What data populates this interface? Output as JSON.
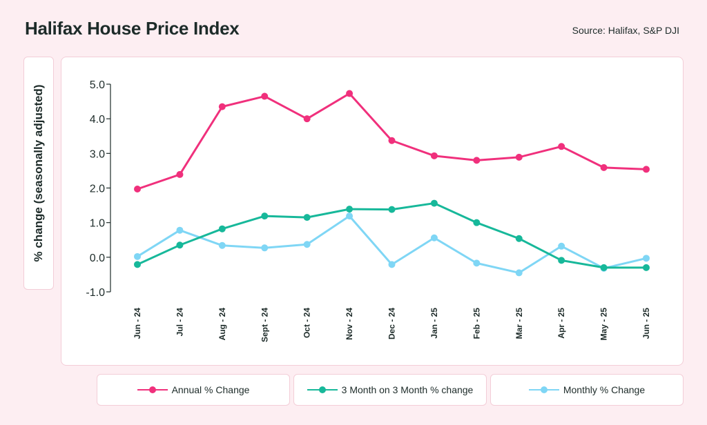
{
  "header": {
    "title": "Halifax House Price Index",
    "source": "Source: Halifax, S&P DJI"
  },
  "colors": {
    "annual": "#f0307c",
    "three_month": "#17b89a",
    "monthly": "#7fd6f5"
  },
  "chart_data": {
    "type": "line",
    "title": "Halifax House Price Index",
    "xlabel": "",
    "ylabel": "% change (seasonally adjusted)",
    "ylim": [
      -1.0,
      5.0
    ],
    "yticks": [
      5.0,
      4.0,
      3.0,
      2.0,
      1.0,
      0.0,
      -1.0
    ],
    "ytick_labels": [
      "5.0",
      "4.0",
      "3.0",
      "2.0",
      "1.0",
      "0.0",
      "-1.0"
    ],
    "categories": [
      "Jun - 24",
      "Jul - 24",
      "Aug - 24",
      "Sept - 24",
      "Oct - 24",
      "Nov - 24",
      "Dec - 24",
      "Jan - 25",
      "Feb - 25",
      "Mar - 25",
      "Apr - 25",
      "May - 25",
      "Jun - 25"
    ],
    "series": [
      {
        "name": "Annual % Change",
        "values": [
          1.97,
          2.39,
          4.35,
          4.65,
          4.0,
          4.73,
          3.37,
          2.93,
          2.8,
          2.89,
          3.2,
          2.59,
          2.54
        ]
      },
      {
        "name": "3 Month on 3 Month % change",
        "values": [
          -0.21,
          0.35,
          0.82,
          1.19,
          1.15,
          1.39,
          1.38,
          1.56,
          1.0,
          0.54,
          -0.09,
          -0.3,
          -0.3
        ]
      },
      {
        "name": "Monthly % Change",
        "values": [
          0.02,
          0.78,
          0.34,
          0.27,
          0.37,
          1.19,
          -0.21,
          0.56,
          -0.17,
          -0.45,
          0.32,
          -0.32,
          -0.03
        ]
      }
    ],
    "grid": false,
    "legend_position": "bottom"
  },
  "legend": {
    "items": [
      {
        "label": "Annual % Change"
      },
      {
        "label": "3 Month on 3 Month % change"
      },
      {
        "label": "Monthly % Change"
      }
    ]
  }
}
